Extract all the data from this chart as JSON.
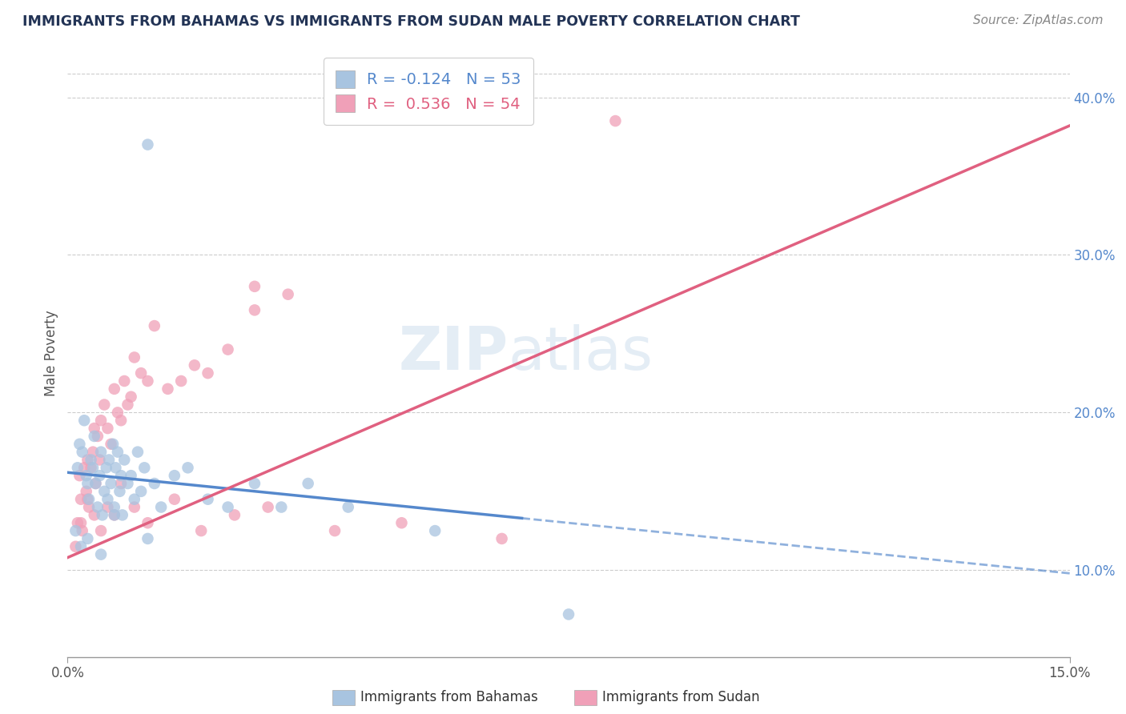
{
  "title": "IMMIGRANTS FROM BAHAMAS VS IMMIGRANTS FROM SUDAN MALE POVERTY CORRELATION CHART",
  "source": "Source: ZipAtlas.com",
  "ylabel": "Male Poverty",
  "right_ytick_vals": [
    10.0,
    20.0,
    30.0,
    40.0
  ],
  "x_min": 0.0,
  "x_max": 15.0,
  "y_min": 4.5,
  "y_max": 43.0,
  "legend_r_bahamas": "-0.124",
  "legend_n_bahamas": "53",
  "legend_r_sudan": "0.536",
  "legend_n_sudan": "54",
  "color_bahamas": "#a8c4e0",
  "color_sudan": "#f0a0b8",
  "trendline_bahamas_color": "#5588cc",
  "trendline_sudan_color": "#e06080",
  "watermark_zip": "ZIP",
  "watermark_atlas": "atlas",
  "bah_trend_x0": 0.0,
  "bah_trend_y0": 16.2,
  "bah_trend_x1": 15.0,
  "bah_trend_y1": 9.8,
  "sud_trend_x0": 0.0,
  "sud_trend_y0": 10.8,
  "sud_trend_x1": 15.0,
  "sud_trend_y1": 38.2,
  "bah_solid_end": 6.8,
  "bahamas_x": [
    0.15,
    0.18,
    0.22,
    0.25,
    0.28,
    0.3,
    0.32,
    0.35,
    0.38,
    0.4,
    0.42,
    0.45,
    0.48,
    0.5,
    0.52,
    0.55,
    0.58,
    0.6,
    0.62,
    0.65,
    0.68,
    0.7,
    0.72,
    0.75,
    0.78,
    0.8,
    0.82,
    0.85,
    0.9,
    0.95,
    1.0,
    1.05,
    1.1,
    1.15,
    1.2,
    1.3,
    1.4,
    1.6,
    1.8,
    2.1,
    2.4,
    2.8,
    3.2,
    3.6,
    4.2,
    0.12,
    0.2,
    0.3,
    0.5,
    0.7,
    1.2,
    7.5,
    5.5
  ],
  "bahamas_y": [
    16.5,
    18.0,
    17.5,
    19.5,
    16.0,
    15.5,
    14.5,
    17.0,
    16.5,
    18.5,
    15.5,
    14.0,
    16.0,
    17.5,
    13.5,
    15.0,
    16.5,
    14.5,
    17.0,
    15.5,
    18.0,
    14.0,
    16.5,
    17.5,
    15.0,
    16.0,
    13.5,
    17.0,
    15.5,
    16.0,
    14.5,
    17.5,
    15.0,
    16.5,
    37.0,
    15.5,
    14.0,
    16.0,
    16.5,
    14.5,
    14.0,
    15.5,
    14.0,
    15.5,
    14.0,
    12.5,
    11.5,
    12.0,
    11.0,
    13.5,
    12.0,
    7.2,
    12.5
  ],
  "sudan_x": [
    0.12,
    0.15,
    0.18,
    0.2,
    0.22,
    0.25,
    0.28,
    0.3,
    0.32,
    0.35,
    0.38,
    0.4,
    0.42,
    0.45,
    0.48,
    0.5,
    0.55,
    0.6,
    0.65,
    0.7,
    0.75,
    0.8,
    0.85,
    0.9,
    0.95,
    1.0,
    1.1,
    1.2,
    1.3,
    1.5,
    1.7,
    1.9,
    2.1,
    2.4,
    2.8,
    3.3,
    0.2,
    0.3,
    0.4,
    0.5,
    0.6,
    0.7,
    0.8,
    1.0,
    1.2,
    1.6,
    2.0,
    2.5,
    3.0,
    4.0,
    5.0,
    6.5,
    8.2,
    2.8
  ],
  "sudan_y": [
    11.5,
    13.0,
    16.0,
    14.5,
    12.5,
    16.5,
    15.0,
    17.0,
    14.0,
    16.5,
    17.5,
    19.0,
    15.5,
    18.5,
    17.0,
    19.5,
    20.5,
    19.0,
    18.0,
    21.5,
    20.0,
    19.5,
    22.0,
    20.5,
    21.0,
    23.5,
    22.5,
    22.0,
    25.5,
    21.5,
    22.0,
    23.0,
    22.5,
    24.0,
    26.5,
    27.5,
    13.0,
    14.5,
    13.5,
    12.5,
    14.0,
    13.5,
    15.5,
    14.0,
    13.0,
    14.5,
    12.5,
    13.5,
    14.0,
    12.5,
    13.0,
    12.0,
    38.5,
    28.0
  ]
}
